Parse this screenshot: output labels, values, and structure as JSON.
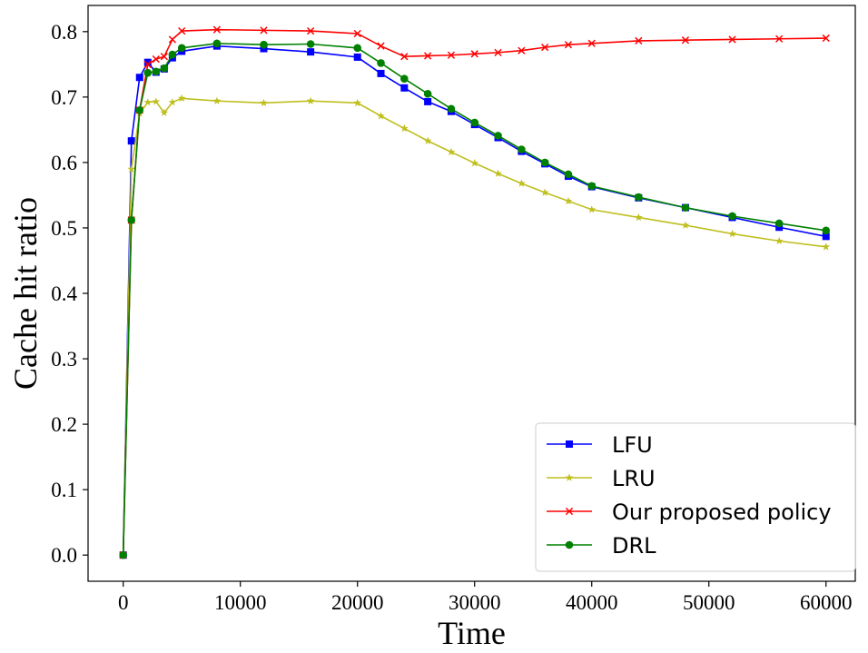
{
  "chart_data": {
    "type": "line",
    "title": "",
    "xlabel": "Time",
    "ylabel": "Cache hit ratio",
    "xlim": [
      -3000,
      62500
    ],
    "ylim": [
      -0.04,
      0.84
    ],
    "xticks": [
      0,
      10000,
      20000,
      30000,
      40000,
      50000,
      60000
    ],
    "xtick_labels": [
      "0",
      "10000",
      "20000",
      "30000",
      "40000",
      "50000",
      "60000"
    ],
    "yticks": [
      0.0,
      0.1,
      0.2,
      0.3,
      0.4,
      0.5,
      0.6,
      0.7,
      0.8
    ],
    "ytick_labels": [
      "0.0",
      "0.1",
      "0.2",
      "0.3",
      "0.4",
      "0.5",
      "0.6",
      "0.7",
      "0.8"
    ],
    "grid": false,
    "legend_position": "bottom-right",
    "series": [
      {
        "name": "LFU",
        "color": "#0000ff",
        "marker": "square",
        "x": [
          0,
          700,
          1400,
          2100,
          2800,
          3500,
          4200,
          5000,
          8000,
          12000,
          16000,
          20000,
          22000,
          24000,
          26000,
          28000,
          30000,
          32000,
          34000,
          36000,
          38000,
          40000,
          44000,
          48000,
          52000,
          56000,
          60000
        ],
        "y": [
          0.0,
          0.633,
          0.73,
          0.753,
          0.738,
          0.743,
          0.76,
          0.77,
          0.778,
          0.774,
          0.769,
          0.761,
          0.736,
          0.714,
          0.693,
          0.678,
          0.658,
          0.638,
          0.617,
          0.598,
          0.579,
          0.563,
          0.546,
          0.531,
          0.516,
          0.501,
          0.487
        ]
      },
      {
        "name": "LRU",
        "color": "#bfbf1f",
        "marker": "star",
        "x": [
          0,
          700,
          1400,
          2100,
          2800,
          3500,
          4200,
          5000,
          8000,
          12000,
          16000,
          20000,
          22000,
          24000,
          26000,
          28000,
          30000,
          32000,
          34000,
          36000,
          38000,
          40000,
          44000,
          48000,
          52000,
          56000,
          60000
        ],
        "y": [
          0.0,
          0.59,
          0.675,
          0.692,
          0.693,
          0.676,
          0.692,
          0.698,
          0.694,
          0.691,
          0.694,
          0.691,
          0.671,
          0.652,
          0.633,
          0.616,
          0.599,
          0.583,
          0.568,
          0.554,
          0.541,
          0.528,
          0.516,
          0.504,
          0.491,
          0.48,
          0.471
        ]
      },
      {
        "name": "Our proposed policy",
        "color": "#ff0000",
        "marker": "x",
        "x": [
          0,
          700,
          1400,
          2100,
          2800,
          3500,
          4200,
          5000,
          8000,
          12000,
          16000,
          20000,
          22000,
          24000,
          26000,
          28000,
          30000,
          32000,
          34000,
          36000,
          38000,
          40000,
          44000,
          48000,
          52000,
          56000,
          60000
        ],
        "y": [
          0.0,
          0.512,
          0.68,
          0.75,
          0.758,
          0.762,
          0.788,
          0.801,
          0.803,
          0.802,
          0.801,
          0.797,
          0.778,
          0.762,
          0.763,
          0.764,
          0.766,
          0.768,
          0.771,
          0.776,
          0.78,
          0.782,
          0.786,
          0.787,
          0.788,
          0.789,
          0.79
        ]
      },
      {
        "name": "DRL",
        "color": "#008000",
        "marker": "circle",
        "x": [
          0,
          700,
          1400,
          2100,
          2800,
          3500,
          4200,
          5000,
          8000,
          12000,
          16000,
          20000,
          22000,
          24000,
          26000,
          28000,
          30000,
          32000,
          34000,
          36000,
          38000,
          40000,
          44000,
          48000,
          52000,
          56000,
          60000
        ],
        "y": [
          0.0,
          0.512,
          0.68,
          0.737,
          0.739,
          0.744,
          0.765,
          0.775,
          0.782,
          0.78,
          0.781,
          0.775,
          0.752,
          0.728,
          0.705,
          0.682,
          0.661,
          0.641,
          0.62,
          0.6,
          0.582,
          0.564,
          0.547,
          0.531,
          0.518,
          0.507,
          0.496
        ]
      }
    ]
  }
}
